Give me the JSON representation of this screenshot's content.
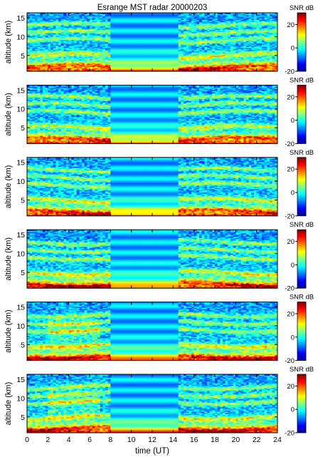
{
  "chart_data": {
    "type": "heatmap",
    "title": "Esrange MST radar 20000203",
    "xlabel": "time (UT)",
    "ylabel": "altitude (km)",
    "xlim": [
      0,
      24
    ],
    "ylim": [
      0.8,
      16.3
    ],
    "x_ticks": [
      0,
      2,
      4,
      6,
      8,
      10,
      12,
      14,
      16,
      18,
      20,
      22,
      24
    ],
    "y_ticks": [
      5,
      10,
      15
    ],
    "colorbar": {
      "label": "SNR dB",
      "ticks": [
        -20,
        0,
        20
      ],
      "range": [
        -20,
        30
      ],
      "colormap": "jet"
    },
    "panel_count": 6,
    "data_gap_hours": [
      8,
      14.6
    ],
    "features": {
      "surface_layer_snr_db": 30,
      "enhanced_layers_km": [
        2,
        5,
        9,
        11,
        13
      ],
      "upper_background_snr_db": -12
    }
  }
}
